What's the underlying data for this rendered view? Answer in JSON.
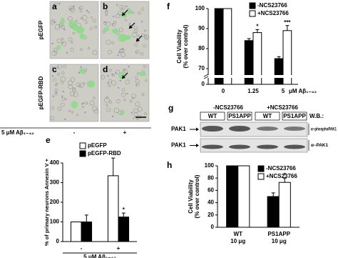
{
  "micrographs": {
    "panel_labels": [
      "a",
      "b",
      "c",
      "d"
    ],
    "row_labels": [
      "pEGFP",
      "pEGFP-RBD"
    ],
    "treatment_label": "5 μM Aβ₁₋₄₂",
    "treatment_levels": [
      "-",
      "+"
    ]
  },
  "blot": {
    "panel_label": "g",
    "groups": [
      "-NCS23766",
      "+NCS23766"
    ],
    "lanes": [
      "WT",
      "PS1APP",
      "WT",
      "PS1APP"
    ],
    "wb_label": "W.B.:",
    "row_labels": [
      "PAK1",
      "PAK1"
    ],
    "antibodies": [
      "α−phosphoPAK1",
      "α−PAK1"
    ]
  },
  "chart_data": [
    {
      "type": "bar",
      "panel_label": "e",
      "ylabel": "% of primary neurons Annexin V +",
      "xlabel": "5 μM Aβ₁₋₄₂",
      "categories": [
        "-",
        "+"
      ],
      "ylim": [
        0,
        400
      ],
      "yticks": [
        0,
        100,
        200,
        300,
        400
      ],
      "series": [
        {
          "name": "pEGFP",
          "color": "#ffffff",
          "values": [
            100,
            335
          ],
          "errors": [
            null,
            90
          ],
          "significance": [
            null,
            null
          ]
        },
        {
          "name": "pEGFP-RBD",
          "color": "#000000",
          "values": [
            100,
            125
          ],
          "errors": [
            35,
            20
          ],
          "significance": [
            null,
            "*"
          ]
        }
      ]
    },
    {
      "type": "bar",
      "panel_label": "f",
      "ylabel": [
        "Cell Viability",
        "(% over control)"
      ],
      "xlabel": "μM Aβ₁₋₄₂",
      "categories": [
        "0",
        "1.25",
        "5"
      ],
      "ylim": [
        0,
        100
      ],
      "yticks": [
        0,
        70,
        80,
        90,
        100
      ],
      "broken_axis": true,
      "series": [
        {
          "name": "-NCS23766",
          "color": "#000000",
          "values": [
            100,
            84,
            75
          ],
          "errors": [
            null,
            1,
            1
          ],
          "significance": [
            null,
            null,
            null
          ]
        },
        {
          "name": "+NCS23766",
          "color": "#ffffff",
          "values": [
            100,
            88,
            89
          ],
          "errors": [
            null,
            1.5,
            2.5
          ],
          "significance": [
            null,
            "*",
            "***"
          ]
        }
      ]
    },
    {
      "type": "bar",
      "panel_label": "h",
      "ylabel": [
        "Cell Viability",
        "(% over control)"
      ],
      "categories": [
        "WT",
        "PS1APP"
      ],
      "category_sublabels": [
        "10 μg",
        "10 μg"
      ],
      "ylim": [
        0,
        100
      ],
      "yticks": [
        0,
        20,
        40,
        60,
        80,
        100
      ],
      "series": [
        {
          "name": "-NCS23766",
          "color": "#000000",
          "values": [
            100,
            50
          ],
          "errors": [
            null,
            6
          ],
          "significance": [
            null,
            null
          ]
        },
        {
          "name": "+NCS23766",
          "color": "#ffffff",
          "values": [
            100,
            73
          ],
          "errors": [
            null,
            7
          ],
          "significance": [
            null,
            "*"
          ]
        }
      ]
    }
  ]
}
